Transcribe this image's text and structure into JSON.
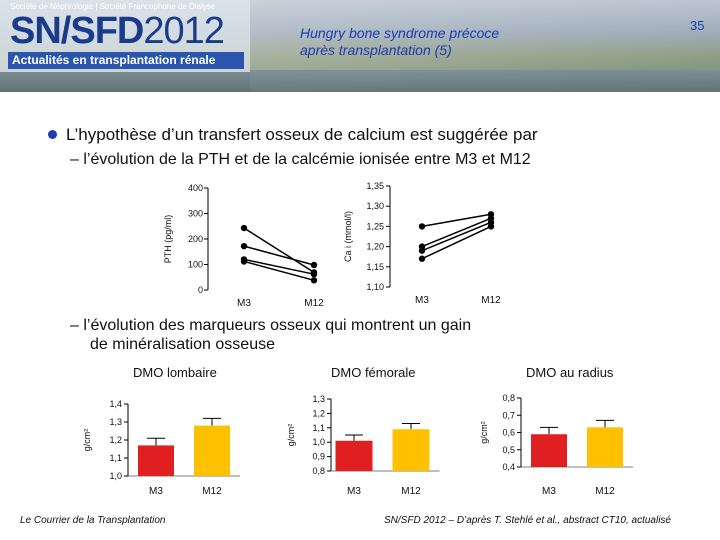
{
  "header": {
    "society_line": "Société de Néphrologie | Société Francophone de Dialyse",
    "logo_sn": "SN/SFD",
    "logo_year": "2012",
    "logo_subtitle": "Actualités en transplantation rénale",
    "slide_title_1": "Hungry bone syndrome précoce",
    "slide_title_2": "après transplantation (5)",
    "slide_number": "35"
  },
  "bullets": {
    "main": "L’hypothèse d’un transfert osseux de calcium est suggérée par",
    "sub1": "– l’évolution de la PTH et de la calcémie ionisée entre M3 et M12",
    "sub2_line1": "– l’évolution des marqueurs osseux qui montrent un gain",
    "sub2_line2": "de minéralisation osseuse"
  },
  "colors": {
    "bar": "#e02020",
    "bar_m12": "#ffc000",
    "accent": "#1b3bb0"
  },
  "chart_data": [
    {
      "type": "line",
      "ylabel": "PTH (pg/ml)",
      "categories": [
        "M3",
        "M12"
      ],
      "yticks": [
        "0",
        "100",
        "200",
        "300",
        "400"
      ],
      "ylim": [
        0,
        400
      ],
      "series": [
        {
          "values": [
            243,
            69
          ]
        },
        {
          "values": [
            172,
            98
          ]
        },
        {
          "values": [
            120,
            62
          ]
        },
        {
          "values": [
            112,
            38
          ]
        }
      ]
    },
    {
      "type": "line",
      "ylabel": "Ca i (mmol/l)",
      "categories": [
        "M3",
        "M12"
      ],
      "yticks": [
        "1,10",
        "1,15",
        "1,20",
        "1,25",
        "1,30",
        "1,35"
      ],
      "ylim": [
        1.1,
        1.35
      ],
      "series": [
        {
          "values": [
            1.25,
            1.28
          ]
        },
        {
          "values": [
            1.2,
            1.27
          ]
        },
        {
          "values": [
            1.19,
            1.26
          ]
        },
        {
          "values": [
            1.17,
            1.25
          ]
        }
      ]
    },
    {
      "type": "bar",
      "title": "DMO lombaire",
      "ylabel": "g/cm²",
      "categories": [
        "M3",
        "M12"
      ],
      "values": [
        1.17,
        1.28
      ],
      "errors": [
        0.04,
        0.04
      ],
      "yticks": [
        "1,0",
        "1,1",
        "1,2",
        "1,3",
        "1,4"
      ],
      "ylim": [
        1.0,
        1.4
      ]
    },
    {
      "type": "bar",
      "title": "DMO fémorale",
      "ylabel": "g/cm²",
      "categories": [
        "M3",
        "M12"
      ],
      "values": [
        1.01,
        1.09
      ],
      "errors": [
        0.04,
        0.04
      ],
      "yticks": [
        "0,8",
        "0,9",
        "1,0",
        "1,1",
        "1,2",
        "1,3"
      ],
      "ylim": [
        0.8,
        1.3
      ]
    },
    {
      "type": "bar",
      "title": "DMO au radius",
      "ylabel": "g/cm²",
      "categories": [
        "M3",
        "M12"
      ],
      "values": [
        0.59,
        0.63
      ],
      "errors": [
        0.04,
        0.04
      ],
      "yticks": [
        "0,4",
        "0,5",
        "0,6",
        "0,7",
        "0,8"
      ],
      "ylim": [
        0.4,
        0.8
      ]
    }
  ],
  "footer": {
    "left": "Le Courrier de la Transplantation",
    "right": "SN/SFD 2012 – D’après T. Stehlé et al., abstract CT10, actualisé"
  }
}
